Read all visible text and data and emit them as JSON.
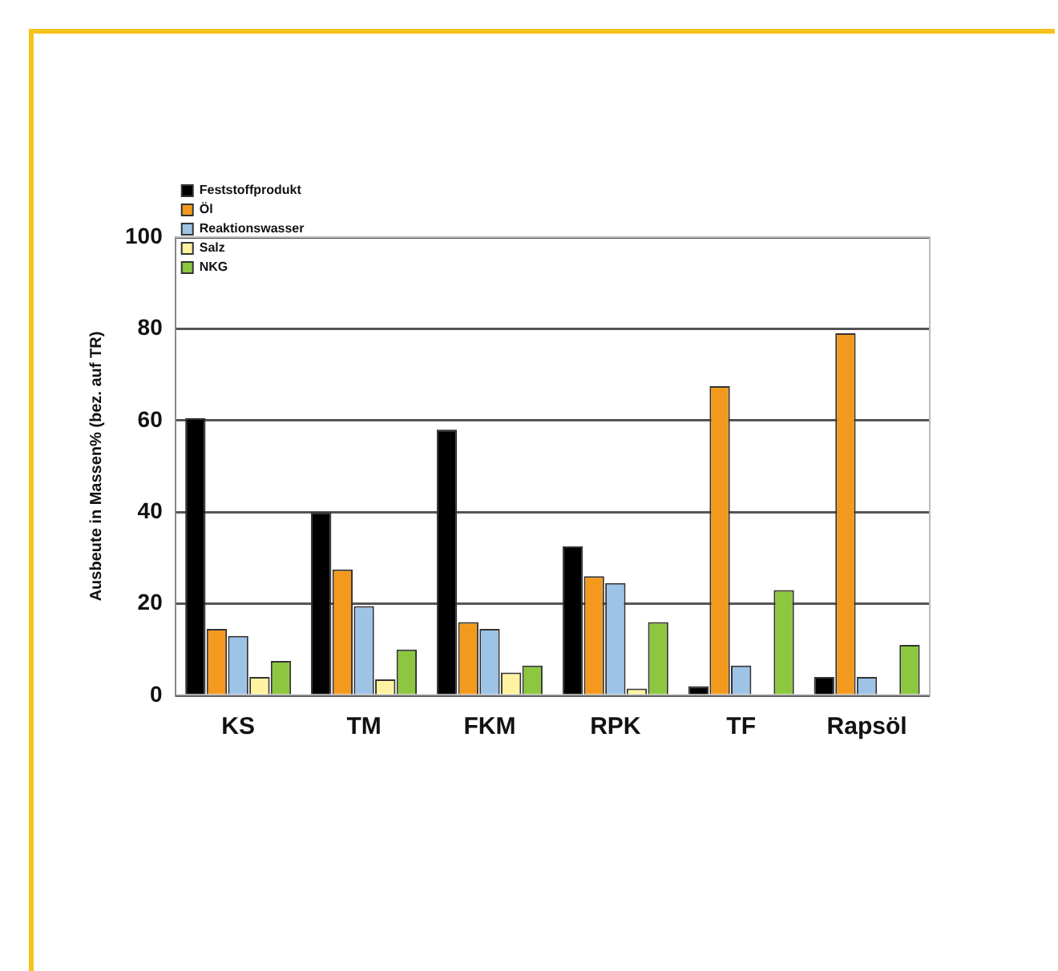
{
  "chart_data": {
    "type": "bar",
    "ylabel": "Ausbeute in Massen% (bez. auf TR)",
    "categories": [
      "KS",
      "TM",
      "FKM",
      "RPK",
      "TF",
      "Rapsöl"
    ],
    "series": [
      {
        "name": "Feststoffprodukt",
        "color": "#000000",
        "values": [
          60.5,
          40,
          58,
          32.5,
          2,
          4
        ]
      },
      {
        "name": "Öl",
        "color": "#f39a1e",
        "values": [
          14.5,
          27.5,
          16,
          26,
          67.5,
          79
        ]
      },
      {
        "name": "Reaktionswasser",
        "color": "#9dc3e6",
        "values": [
          13,
          19.5,
          14.5,
          24.5,
          6.5,
          4
        ]
      },
      {
        "name": "Salz",
        "color": "#fff2a0",
        "values": [
          4,
          3.5,
          5,
          1.5,
          null,
          null
        ]
      },
      {
        "name": "NKG",
        "color": "#8dc63f",
        "values": [
          7.5,
          10,
          6.5,
          16,
          23,
          11
        ]
      }
    ],
    "ylim": [
      0,
      100
    ],
    "yticks": [
      0,
      20,
      40,
      60,
      80,
      100
    ],
    "grid": "y",
    "legend": "top"
  }
}
